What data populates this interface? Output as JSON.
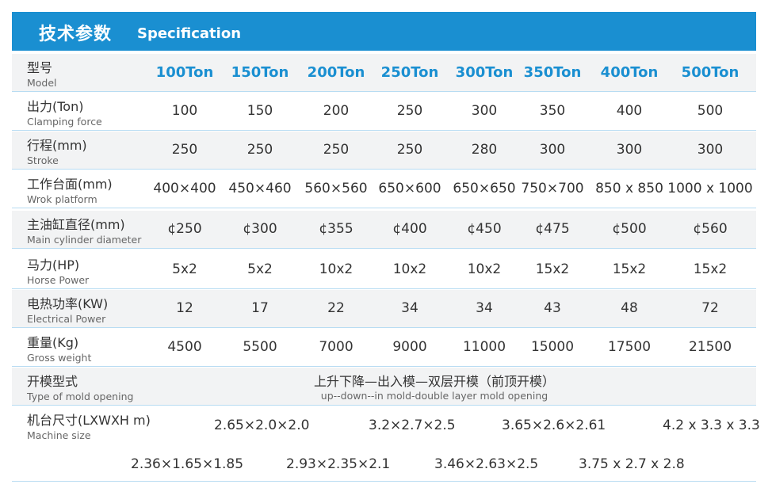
{
  "banner": {
    "title_cn": "技术参数",
    "title_en": "Specification"
  },
  "rows": [
    {
      "cn": "型号",
      "en": "Model",
      "values": [
        "100Ton",
        "150Ton",
        "200Ton",
        "250Ton",
        "300Ton",
        "350Ton",
        "400Ton",
        "500Ton"
      ]
    },
    {
      "cn": "出力(Ton)",
      "en": "Clamping force",
      "values": [
        "100",
        "150",
        "200",
        "250",
        "300",
        "350",
        "400",
        "500"
      ]
    },
    {
      "cn": "行程(mm)",
      "en": "Stroke",
      "values": [
        "250",
        "250",
        "250",
        "250",
        "280",
        "300",
        "300",
        "300"
      ]
    },
    {
      "cn": "工作台面(mm)",
      "en": "Wrok platform",
      "values": [
        "400×400",
        "450×460",
        "560×560",
        "650×600",
        "650×650",
        "750×700",
        "850 x 850",
        "1000 x 1000"
      ]
    },
    {
      "cn": "主油缸直径(mm)",
      "en": "Main cylinder diameter",
      "values": [
        "¢250",
        "¢300",
        "¢355",
        "¢400",
        "¢450",
        "¢475",
        "¢500",
        "¢560"
      ]
    },
    {
      "cn": "马力(HP)",
      "en": "Horse Power",
      "values": [
        "5x2",
        "5x2",
        "10x2",
        "10x2",
        "10x2",
        "15x2",
        "15x2",
        "15x2"
      ]
    },
    {
      "cn": "电热功率(KW)",
      "en": "Electrical Power",
      "values": [
        "12",
        "17",
        "22",
        "34",
        "34",
        "43",
        "48",
        "72"
      ]
    },
    {
      "cn": "重量(Kg)",
      "en": "Gross weight",
      "values": [
        "4500",
        "5500",
        "7000",
        "9000",
        "11000",
        "15000",
        "17500",
        "21500"
      ]
    }
  ],
  "mold": {
    "cn": "开模型式",
    "en": "Type of mold opening",
    "value_cn": "上升下降—出入模—双层开模（前顶开模）",
    "value_en": "up--down--in mold-double layer mold opening"
  },
  "size": {
    "cn": "机台尺寸(LXWXH m)",
    "en": "Machine size",
    "line1": [
      "2.65×2.0×2.0",
      "3.2×2.7×2.5",
      "3.65×2.6×2.61",
      "4.2 x 3.3 x 3.3"
    ],
    "line2": [
      "2.36×1.65×1.85",
      "2.93×2.35×2.1",
      "3.46×2.63×2.5",
      "3.75 x 2.7 x 2.8"
    ]
  }
}
